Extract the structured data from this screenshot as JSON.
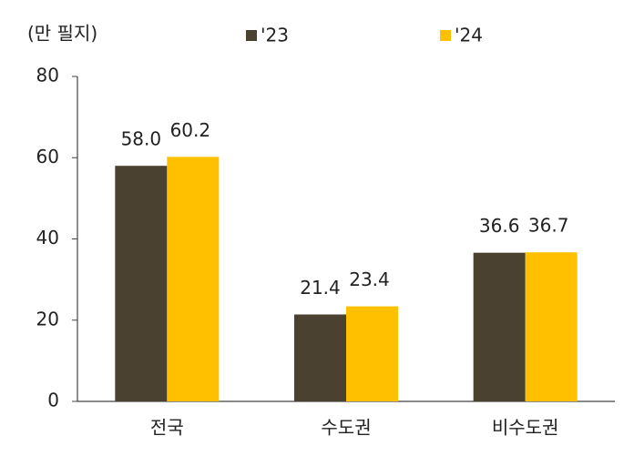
{
  "chart_data": {
    "type": "bar",
    "y_label": "(만 필지)",
    "categories": [
      "전국",
      "수도권",
      "비수도권"
    ],
    "series": [
      {
        "name": "'23",
        "color": "#4a4130",
        "values": [
          58.0,
          21.4,
          36.6
        ],
        "value_labels": [
          "58.0",
          "21.4",
          "36.6"
        ]
      },
      {
        "name": "'24",
        "color": "#ffc000",
        "values": [
          60.2,
          23.4,
          36.7
        ],
        "value_labels": [
          "60.2",
          "23.4",
          "36.7"
        ]
      }
    ],
    "ylim": [
      0,
      80
    ],
    "yticks": [
      0,
      20,
      40,
      60,
      80
    ],
    "grid": false
  }
}
